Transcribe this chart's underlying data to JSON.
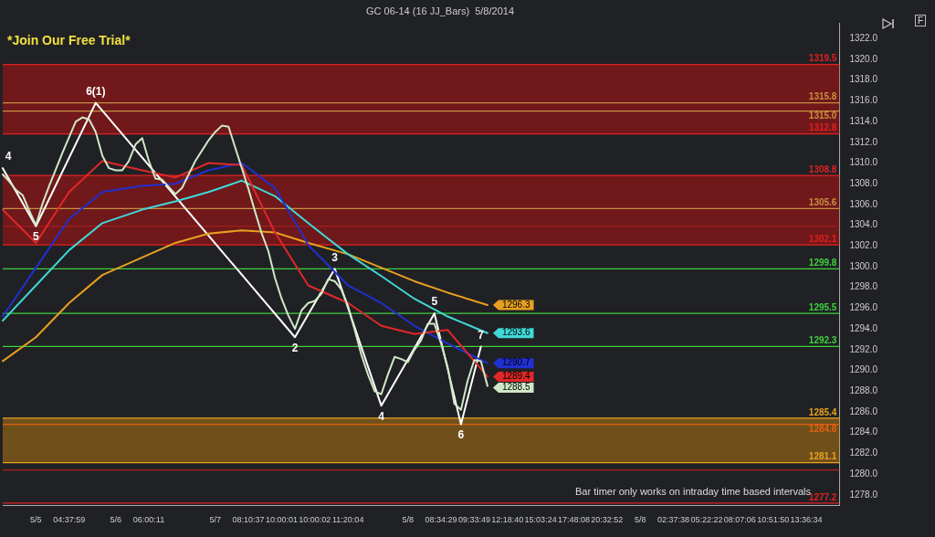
{
  "chart_data": {
    "type": "line",
    "title": "GC 06-14 (16 JJ_Bars)  5/8/2014",
    "annotations": [
      "*Join Our Free Trial*",
      "Bar timer only works on intraday time based intervals",
      "F",
      {
        "text": "4",
        "y": 1309.5
      },
      {
        "text": "5",
        "y": 1303.9
      },
      {
        "text": "6(1)",
        "y": 1315.8
      },
      {
        "text": "2",
        "y": 1293.2
      },
      {
        "text": "3",
        "y": 1299.8
      },
      {
        "text": "4",
        "y": 1286.6
      },
      {
        "text": "5",
        "y": 1295.5
      },
      {
        "text": "6",
        "y": 1284.8
      },
      {
        "text": "7",
        "y": 1292.3
      }
    ],
    "categories": [
      null,
      null,
      null,
      null,
      null,
      "5/5",
      null,
      null,
      null,
      null,
      "04:37:59",
      null,
      null,
      null,
      null,
      null,
      null,
      "5/6",
      null,
      null,
      null,
      null,
      "06:00:11",
      null,
      null,
      null,
      null,
      null,
      null,
      null,
      null,
      null,
      "5/7",
      null,
      null,
      null,
      null,
      "08:10:37",
      null,
      null,
      null,
      null,
      "10:00:01",
      null,
      null,
      null,
      null,
      "10:00:02",
      null,
      null,
      null,
      null,
      "11:20:04",
      null,
      null,
      null,
      null,
      null,
      null,
      null,
      null,
      "5/8",
      null,
      null,
      null,
      null,
      "08:34:29",
      null,
      null,
      null,
      null,
      "09:33:49",
      null,
      null,
      null,
      null,
      "12:18:40",
      null,
      null,
      null,
      null,
      "15:03:24",
      null,
      null,
      null,
      null,
      "17:48:08",
      null,
      null,
      null,
      null,
      "20:32:52",
      null,
      null,
      null,
      null,
      "5/8",
      null,
      null,
      null,
      null,
      "02:37:38",
      null,
      null,
      null,
      null,
      "05:22:22",
      null,
      null,
      null,
      null,
      "08:07:06",
      null,
      null,
      null,
      null,
      "10:51:50",
      null,
      null,
      null,
      null,
      "13:36:34",
      null,
      null,
      null,
      null,
      null
    ],
    "ylim": [
      1277,
      1323.5
    ],
    "yticks": [
      {
        "value": 1278,
        "label": "1278.0"
      },
      {
        "value": 1280,
        "label": "1280.0"
      },
      {
        "value": 1282,
        "label": "1282.0"
      },
      {
        "value": 1284,
        "label": "1284.0"
      },
      {
        "value": 1286,
        "label": "1286.0"
      },
      {
        "value": 1288,
        "label": "1288.0"
      },
      {
        "value": 1290,
        "label": "1290.0"
      },
      {
        "value": 1292,
        "label": "1292.0"
      },
      {
        "value": 1294,
        "label": "1294.0"
      },
      {
        "value": 1296,
        "label": "1296.0"
      },
      {
        "value": 1298,
        "label": "1298.0"
      },
      {
        "value": 1300,
        "label": "1300.0"
      },
      {
        "value": 1302,
        "label": "1302.0"
      },
      {
        "value": 1304,
        "label": "1304.0"
      },
      {
        "value": 1306,
        "label": "1306.0"
      },
      {
        "value": 1308,
        "label": "1308.0"
      },
      {
        "value": 1310,
        "label": "1310.0"
      },
      {
        "value": 1312,
        "label": "1312.0"
      },
      {
        "value": 1314,
        "label": "1314.0"
      },
      {
        "value": 1316,
        "label": "1316.0"
      },
      {
        "value": 1318,
        "label": "1318.0"
      },
      {
        "value": 1320,
        "label": "1320.0"
      },
      {
        "value": 1322,
        "label": "1322.0"
      }
    ],
    "bands": [
      {
        "axis": "y",
        "from": 1312.8,
        "to": 1319.5,
        "color": "#c01010"
      },
      {
        "axis": "y",
        "from": 1302.1,
        "to": 1308.8,
        "color": "#c01010"
      },
      {
        "axis": "y",
        "from": 1281.1,
        "to": 1285.4,
        "color": "#c08010"
      }
    ],
    "ref_lines": [
      {
        "axis": "y",
        "value": 1319.5,
        "label": "1319.5",
        "color": "#e02020"
      },
      {
        "axis": "y",
        "value": 1315.8,
        "label": "1315.8",
        "color": "#c89040"
      },
      {
        "axis": "y",
        "value": 1315.0,
        "label": "1315.0",
        "color": "#c89040"
      },
      {
        "axis": "y",
        "value": 1312.8,
        "label": "1312.8",
        "color": "#e02020"
      },
      {
        "axis": "y",
        "value": 1308.8,
        "label": "1308.8",
        "color": "#e02020"
      },
      {
        "axis": "y",
        "value": 1305.6,
        "label": "1305.6",
        "color": "#c89040"
      },
      {
        "axis": "y",
        "value": 1302.1,
        "label": "1302.1",
        "color": "#e02020"
      },
      {
        "axis": "y",
        "value": 1299.8,
        "label": "1299.8",
        "color": "#3fcf3f"
      },
      {
        "axis": "y",
        "value": 1295.5,
        "label": "1295.5",
        "color": "#3fcf3f"
      },
      {
        "axis": "y",
        "value": 1292.3,
        "label": "1292.3",
        "color": "#3fcf3f"
      },
      {
        "axis": "y",
        "value": 1285.4,
        "label": "1285.4",
        "color": "#e8a020"
      },
      {
        "axis": "y",
        "value": 1284.8,
        "label": "1284.8",
        "color": "#e06010"
      },
      {
        "axis": "y",
        "value": 1281.1,
        "label": "1281.1",
        "color": "#e8a020"
      },
      {
        "axis": "y",
        "value": 1303.9,
        "color": "#b02020"
      },
      {
        "axis": "y",
        "value": 1280.4,
        "color": "#b02020"
      },
      {
        "axis": "y",
        "value": 1277.2,
        "label": "1277.2",
        "color": "#e02020"
      }
    ],
    "series": [
      {
        "color": "#cfe8c8",
        "values": [
          1308.9,
          1308.2,
          1307.4,
          1306.9,
          1305.4,
          1304.0,
          1306.1,
          1307.8,
          1309.4,
          1311.0,
          1312.5,
          1314.0,
          1314.4,
          1314.2,
          1313.0,
          1310.7,
          1309.5,
          1309.3,
          1309.3,
          1310.2,
          1311.8,
          1312.4,
          1310.2,
          1308.5,
          1308.4,
          1307.7,
          1307.0,
          1307.6,
          1308.9,
          1310.2,
          1311.2,
          1312.2,
          1313.0,
          1313.6,
          1313.5,
          1311.5,
          1309.5,
          1307.5,
          1305.3,
          1303.2,
          1301.5,
          1298.9,
          1296.9,
          1295.3,
          1294.0,
          1295.8,
          1296.5,
          1296.7,
          1297.4,
          1298.8,
          1298.6,
          1297.8,
          1296.2,
          1293.9,
          1291.5,
          1289.6,
          1288.0,
          1287.7,
          1289.6,
          1291.3,
          1291.1,
          1290.8,
          1292.0,
          1292.9,
          1294.5,
          1294.5,
          1292.6,
          1290.3,
          1286.8,
          1286.2,
          1289.0,
          1291.0,
          1290.9,
          1288.5,
          null,
          null,
          null,
          null,
          null,
          null,
          null,
          null,
          null,
          null,
          null,
          null,
          null,
          null,
          null,
          null,
          null,
          null,
          null,
          null,
          null,
          null,
          null,
          null,
          null,
          null,
          null,
          null,
          null,
          null,
          null,
          null,
          null,
          null,
          null,
          null,
          null,
          null,
          null,
          null,
          null,
          null,
          null,
          null,
          null,
          null,
          null,
          null,
          null,
          null,
          null,
          null,
          null
        ],
        "value_labels": [
          null,
          null,
          null,
          null,
          null,
          null,
          null,
          null,
          null,
          null,
          null,
          null,
          null,
          null,
          null,
          null,
          null,
          null,
          null,
          null,
          null,
          null,
          null,
          null,
          null,
          null,
          null,
          null,
          null,
          null,
          null,
          null,
          null,
          null,
          null,
          null,
          null,
          null,
          null,
          null,
          null,
          null,
          null,
          null,
          null,
          null,
          null,
          null,
          null,
          null,
          null,
          null,
          null,
          null,
          null,
          null,
          null,
          null,
          null,
          null,
          null,
          null,
          null,
          null,
          null,
          null,
          null,
          null,
          null,
          null,
          null,
          null,
          null,
          "1288.5",
          null,
          null,
          null,
          null,
          null,
          null,
          null,
          null,
          null,
          null,
          null,
          null,
          null,
          null,
          null,
          null,
          null,
          null,
          null,
          null,
          null,
          null,
          null,
          null,
          null,
          null,
          null,
          null,
          null,
          null,
          null,
          null,
          null,
          null,
          null,
          null,
          null,
          null,
          null,
          null,
          null,
          null,
          null,
          null,
          null,
          null,
          null,
          null,
          null,
          null,
          null,
          null,
          null
        ]
      },
      {
        "color": "#e02828",
        "values": [
          1305.5,
          null,
          null,
          null,
          null,
          1302.3,
          null,
          null,
          null,
          null,
          1307.2,
          null,
          null,
          null,
          null,
          1310.2,
          null,
          null,
          null,
          null,
          null,
          1309.3,
          null,
          null,
          null,
          null,
          1308.6,
          null,
          null,
          null,
          null,
          1310.0,
          null,
          null,
          null,
          null,
          1309.8,
          null,
          null,
          null,
          null,
          1303.3,
          null,
          null,
          null,
          null,
          1298.2,
          null,
          null,
          null,
          null,
          null,
          1296.5,
          null,
          null,
          null,
          null,
          1294.3,
          null,
          null,
          null,
          null,
          1293.5,
          null,
          null,
          null,
          null,
          1293.9,
          null,
          null,
          null,
          null,
          null,
          1289.4,
          null,
          null,
          null,
          null,
          null,
          null,
          null,
          null,
          null,
          null,
          null,
          null,
          null,
          null,
          null,
          null,
          null,
          null,
          null,
          null,
          null,
          null,
          null,
          null,
          null,
          null,
          null,
          null,
          null,
          null,
          null,
          null,
          null,
          null,
          null,
          null,
          null,
          null,
          null,
          null,
          null,
          null,
          null,
          null,
          null,
          null,
          null,
          null,
          null,
          null,
          null,
          null,
          null
        ],
        "value_labels": [
          null,
          null,
          null,
          null,
          null,
          null,
          null,
          null,
          null,
          null,
          null,
          null,
          null,
          null,
          null,
          null,
          null,
          null,
          null,
          null,
          null,
          null,
          null,
          null,
          null,
          null,
          null,
          null,
          null,
          null,
          null,
          null,
          null,
          null,
          null,
          null,
          null,
          null,
          null,
          null,
          null,
          null,
          null,
          null,
          null,
          null,
          null,
          null,
          null,
          null,
          null,
          null,
          null,
          null,
          null,
          null,
          null,
          null,
          null,
          null,
          null,
          null,
          null,
          null,
          null,
          null,
          null,
          null,
          null,
          null,
          null,
          null,
          null,
          "1289.4",
          null,
          null,
          null,
          null,
          null,
          null,
          null,
          null,
          null,
          null,
          null,
          null,
          null,
          null,
          null,
          null,
          null,
          null,
          null,
          null,
          null,
          null,
          null,
          null,
          null,
          null,
          null,
          null,
          null,
          null,
          null,
          null,
          null,
          null,
          null,
          null,
          null,
          null,
          null,
          null,
          null,
          null,
          null,
          null,
          null,
          null,
          null,
          null,
          null,
          null,
          null,
          null,
          null
        ]
      },
      {
        "color": "#2030d0",
        "values": [
          1295.2,
          null,
          null,
          null,
          null,
          1299.9,
          null,
          null,
          null,
          null,
          1304.6,
          null,
          null,
          null,
          null,
          1307.2,
          null,
          null,
          null,
          null,
          null,
          1307.8,
          null,
          null,
          null,
          null,
          1308.0,
          null,
          null,
          null,
          null,
          1309.3,
          null,
          null,
          null,
          null,
          1310.0,
          null,
          null,
          null,
          null,
          1307.6,
          null,
          null,
          null,
          null,
          1302.1,
          null,
          null,
          null,
          null,
          null,
          1298.2,
          null,
          null,
          null,
          null,
          1296.5,
          null,
          null,
          null,
          null,
          1294.3,
          null,
          null,
          null,
          null,
          1292.6,
          null,
          null,
          null,
          null,
          null,
          1290.7,
          null,
          null,
          null,
          null,
          null,
          null,
          null,
          null,
          null,
          null,
          null,
          null,
          null,
          null,
          null,
          null,
          null,
          null,
          null,
          null,
          null,
          null,
          null,
          null,
          null,
          null,
          null,
          null,
          null,
          null,
          null,
          null,
          null,
          null,
          null,
          null,
          null,
          null,
          null,
          null,
          null,
          null,
          null,
          null,
          null,
          null,
          null,
          null,
          null,
          null,
          null,
          null,
          null
        ],
        "value_labels": [
          null,
          null,
          null,
          null,
          null,
          null,
          null,
          null,
          null,
          null,
          null,
          null,
          null,
          null,
          null,
          null,
          null,
          null,
          null,
          null,
          null,
          null,
          null,
          null,
          null,
          null,
          null,
          null,
          null,
          null,
          null,
          null,
          null,
          null,
          null,
          null,
          null,
          null,
          null,
          null,
          null,
          null,
          null,
          null,
          null,
          null,
          null,
          null,
          null,
          null,
          null,
          null,
          null,
          null,
          null,
          null,
          null,
          null,
          null,
          null,
          null,
          null,
          null,
          null,
          null,
          null,
          null,
          null,
          null,
          null,
          null,
          null,
          null,
          "1290.7",
          null,
          null,
          null,
          null,
          null,
          null,
          null,
          null,
          null,
          null,
          null,
          null,
          null,
          null,
          null,
          null,
          null,
          null,
          null,
          null,
          null,
          null,
          null,
          null,
          null,
          null,
          null,
          null,
          null,
          null,
          null,
          null,
          null,
          null,
          null,
          null,
          null,
          null,
          null,
          null,
          null,
          null,
          null,
          null,
          null,
          null,
          null,
          null,
          null,
          null,
          null,
          null,
          null
        ]
      },
      {
        "color": "#40d8d8",
        "values": [
          1294.8,
          null,
          null,
          null,
          null,
          1298.2,
          null,
          null,
          null,
          null,
          1301.6,
          null,
          null,
          null,
          null,
          1304.2,
          null,
          null,
          null,
          null,
          null,
          1305.5,
          null,
          null,
          null,
          null,
          1306.3,
          null,
          null,
          null,
          null,
          1307.2,
          null,
          null,
          null,
          null,
          1308.3,
          null,
          null,
          null,
          null,
          1306.8,
          null,
          null,
          null,
          null,
          1304.2,
          null,
          null,
          null,
          null,
          null,
          1301.2,
          null,
          null,
          null,
          null,
          1299.1,
          null,
          null,
          null,
          null,
          1296.9,
          null,
          null,
          null,
          null,
          1295.2,
          null,
          null,
          null,
          null,
          null,
          1293.6,
          null,
          null,
          null,
          null,
          null,
          null,
          null,
          null,
          null,
          null,
          null,
          null,
          null,
          null,
          null,
          null,
          null,
          null,
          null,
          null,
          null,
          null,
          null,
          null,
          null,
          null,
          null,
          null,
          null,
          null,
          null,
          null,
          null,
          null,
          null,
          null,
          null,
          null,
          null,
          null,
          null,
          null,
          null,
          null,
          null,
          null,
          null,
          null,
          null,
          null,
          null,
          null,
          null
        ],
        "value_labels": [
          null,
          null,
          null,
          null,
          null,
          null,
          null,
          null,
          null,
          null,
          null,
          null,
          null,
          null,
          null,
          null,
          null,
          null,
          null,
          null,
          null,
          null,
          null,
          null,
          null,
          null,
          null,
          null,
          null,
          null,
          null,
          null,
          null,
          null,
          null,
          null,
          null,
          null,
          null,
          null,
          null,
          null,
          null,
          null,
          null,
          null,
          null,
          null,
          null,
          null,
          null,
          null,
          null,
          null,
          null,
          null,
          null,
          null,
          null,
          null,
          null,
          null,
          null,
          null,
          null,
          null,
          null,
          null,
          null,
          null,
          null,
          null,
          null,
          "1293.6",
          null,
          null,
          null,
          null,
          null,
          null,
          null,
          null,
          null,
          null,
          null,
          null,
          null,
          null,
          null,
          null,
          null,
          null,
          null,
          null,
          null,
          null,
          null,
          null,
          null,
          null,
          null,
          null,
          null,
          null,
          null,
          null,
          null,
          null,
          null,
          null,
          null,
          null,
          null,
          null,
          null,
          null,
          null,
          null,
          null,
          null,
          null,
          null,
          null,
          null,
          null,
          null,
          null
        ]
      },
      {
        "color": "#e8a020",
        "values": [
          1290.9,
          null,
          null,
          null,
          null,
          1293.2,
          null,
          null,
          null,
          null,
          1296.5,
          null,
          null,
          null,
          null,
          1299.2,
          null,
          null,
          null,
          null,
          null,
          1300.9,
          null,
          null,
          null,
          null,
          1302.3,
          null,
          null,
          null,
          null,
          1303.2,
          null,
          null,
          null,
          null,
          1303.5,
          null,
          null,
          null,
          null,
          1303.3,
          null,
          null,
          null,
          null,
          1302.3,
          null,
          null,
          null,
          null,
          null,
          1301.2,
          null,
          null,
          null,
          null,
          1299.9,
          null,
          null,
          null,
          null,
          1298.6,
          null,
          null,
          null,
          null,
          1297.5,
          null,
          null,
          null,
          null,
          null,
          1296.3,
          null,
          null,
          null,
          null,
          null,
          null,
          null,
          null,
          null,
          null,
          null,
          null,
          null,
          null,
          null,
          null,
          null,
          null,
          null,
          null,
          null,
          null,
          null,
          null,
          null,
          null,
          null,
          null,
          null,
          null,
          null,
          null,
          null,
          null,
          null,
          null,
          null,
          null,
          null,
          null,
          null,
          null,
          null,
          null,
          null,
          null,
          null,
          null,
          null,
          null,
          null,
          null,
          null
        ],
        "value_labels": [
          null,
          null,
          null,
          null,
          null,
          null,
          null,
          null,
          null,
          null,
          null,
          null,
          null,
          null,
          null,
          null,
          null,
          null,
          null,
          null,
          null,
          null,
          null,
          null,
          null,
          null,
          null,
          null,
          null,
          null,
          null,
          null,
          null,
          null,
          null,
          null,
          null,
          null,
          null,
          null,
          null,
          null,
          null,
          null,
          null,
          null,
          null,
          null,
          null,
          null,
          null,
          null,
          null,
          null,
          null,
          null,
          null,
          null,
          null,
          null,
          null,
          null,
          null,
          null,
          null,
          null,
          null,
          null,
          null,
          null,
          null,
          null,
          null,
          "1296.3",
          null,
          null,
          null,
          null,
          null,
          null,
          null,
          null,
          null,
          null,
          null,
          null,
          null,
          null,
          null,
          null,
          null,
          null,
          null,
          null,
          null,
          null,
          null,
          null,
          null,
          null,
          null,
          null,
          null,
          null,
          null,
          null,
          null,
          null,
          null,
          null,
          null,
          null,
          null,
          null,
          null,
          null,
          null,
          null,
          null,
          null,
          null,
          null,
          null,
          null,
          null,
          null,
          null
        ]
      },
      {
        "color": "#ffffff",
        "values": [
          1309.5,
          null,
          null,
          null,
          null,
          1303.9,
          null,
          null,
          null,
          null,
          null,
          null,
          null,
          null,
          1315.8,
          null,
          null,
          null,
          null,
          null,
          null,
          null,
          null,
          null,
          null,
          null,
          null,
          null,
          null,
          null,
          null,
          null,
          null,
          null,
          null,
          null,
          null,
          null,
          null,
          null,
          null,
          null,
          null,
          null,
          1293.2,
          null,
          null,
          null,
          null,
          null,
          1299.8,
          null,
          null,
          null,
          null,
          null,
          null,
          1286.6,
          null,
          null,
          null,
          null,
          null,
          null,
          null,
          1295.5,
          null,
          null,
          null,
          1284.8,
          null,
          null,
          1292.3,
          null,
          null,
          null,
          null,
          null,
          null,
          null,
          null,
          null,
          null,
          null,
          null,
          null,
          null,
          null,
          null,
          null,
          null,
          null,
          null,
          null,
          null,
          null,
          null,
          null,
          null,
          null,
          null,
          null,
          null,
          null,
          null,
          null,
          null,
          null,
          null,
          null,
          null,
          null,
          null,
          null,
          null,
          null,
          null,
          null,
          null,
          null,
          null,
          null,
          null,
          null,
          null,
          null,
          null
        ],
        "value_labels": [
          null,
          null,
          null,
          null,
          null,
          null,
          null,
          null,
          null,
          null,
          null,
          null,
          null,
          null,
          null,
          null,
          null,
          null,
          null,
          null,
          null,
          null,
          null,
          null,
          null,
          null,
          null,
          null,
          null,
          null,
          null,
          null,
          null,
          null,
          null,
          null,
          null,
          null,
          null,
          null,
          null,
          null,
          null,
          null,
          null,
          null,
          null,
          null,
          null,
          null,
          null,
          null,
          null,
          null,
          null,
          null,
          null,
          null,
          null,
          null,
          null,
          null,
          null,
          null,
          null,
          null,
          null,
          null,
          null,
          null,
          null,
          null,
          null,
          null,
          null,
          null,
          null,
          null,
          null,
          null,
          null,
          null,
          null,
          null,
          null,
          null,
          null,
          null,
          null,
          null,
          null,
          null,
          null,
          null,
          null,
          null,
          null,
          null,
          null,
          null,
          null,
          null,
          null,
          null,
          null,
          null,
          null,
          null,
          null,
          null,
          null,
          null,
          null,
          null,
          null,
          null,
          null,
          null,
          null,
          null,
          null,
          null,
          null,
          null,
          null,
          null,
          null
        ]
      }
    ],
    "legend": false,
    "grid": false,
    "marker": "none",
    "line_style": "solid"
  }
}
